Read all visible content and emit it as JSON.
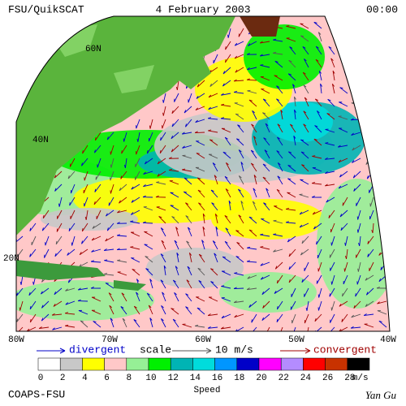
{
  "header": {
    "left": "FSU/QuikSCAT",
    "center": "4 February 2003",
    "right": "00:00"
  },
  "map": {
    "lat_labels": [
      "60N",
      "40N",
      "20N"
    ],
    "lon_labels": [
      "80W",
      "70W",
      "60W",
      "50W",
      "40W"
    ]
  },
  "legend": {
    "divergent": "divergent",
    "scale": "scale",
    "scale_value": "10 m/s",
    "convergent": "convergent"
  },
  "colorbar": {
    "colors": [
      "#ffffff",
      "#c8c8c8",
      "#ffff00",
      "#ffc8c8",
      "#96f096",
      "#00f000",
      "#00b4b4",
      "#00dcdc",
      "#0096ff",
      "#0000c8",
      "#ff00ff",
      "#b48cff",
      "#ff0000",
      "#c83200",
      "#000000"
    ],
    "labels": [
      0,
      2,
      4,
      6,
      8,
      10,
      12,
      14,
      16,
      18,
      20,
      22,
      24,
      26,
      28
    ],
    "unit": "m/s",
    "title": "Speed"
  },
  "footer": {
    "left": "COAPS-FSU",
    "right": "Yan Gu"
  }
}
